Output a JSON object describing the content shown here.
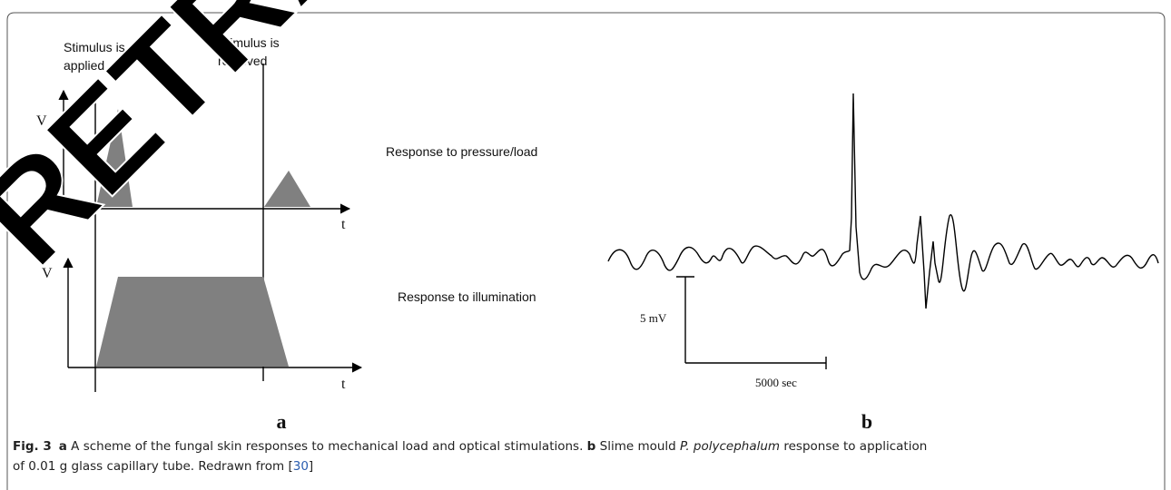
{
  "figure": {
    "watermark": "RETRACTED",
    "panel_a": {
      "stimulus_applied": [
        "Stimulus is",
        "applied"
      ],
      "stimulus_removed": [
        "Stimulus is",
        "removed"
      ],
      "upper_y_axis": "V",
      "upper_x_axis": "t",
      "lower_y_axis": "V",
      "lower_x_axis": "t",
      "label": "a"
    },
    "row_labels": [
      "Response to pressure/load",
      "Response to illumination"
    ],
    "panel_b": {
      "scale_y": "5 mV",
      "scale_x": "5000 sec",
      "label": "b"
    },
    "caption": {
      "fig": "Fig. 3",
      "a": "a",
      "a_text": " A scheme of the fungal skin responses to mechanical load and optical stimulations. ",
      "b": "b",
      "b_text": " Slime mould ",
      "species": "P. polycephalum",
      "b_text2": " response to application",
      "line2": "of 0.01 g glass capillary tube. Redrawn from [",
      "ref": "30",
      "ref_close": "]"
    }
  }
}
